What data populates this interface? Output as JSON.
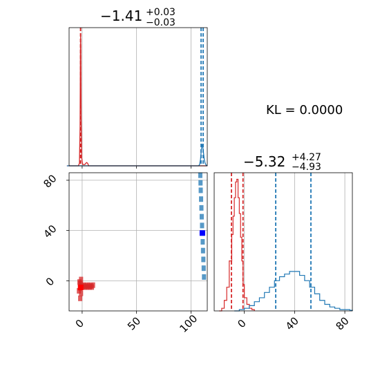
{
  "chart_data": [
    {
      "panel": "top-left marginal",
      "type": "line",
      "title_main": "−1.41",
      "title_sup": "+0.03",
      "title_sub": "−0.03",
      "xlim": [
        -12,
        115
      ],
      "grid": true,
      "series": [
        {
          "color": "#d62728",
          "x": [
            -14,
            -3.5,
            -2.5,
            -1.9,
            -1.6,
            -1.4,
            -1.2,
            -0.9,
            -0.4,
            0.5,
            2.5,
            4,
            5,
            6,
            115
          ],
          "y": [
            0,
            0,
            0.02,
            0.3,
            0.85,
            1.0,
            0.9,
            0.35,
            0.06,
            0.01,
            0.01,
            0.025,
            0.02,
            0,
            0
          ],
          "quantile_lines": [
            -1.44,
            -1.38
          ]
        },
        {
          "color": "#1f77b4",
          "x": [
            -14,
            107,
            108,
            108.8,
            109.5,
            110.2,
            110.8,
            111.5,
            112.2,
            113,
            114,
            115
          ],
          "y": [
            0,
            0,
            0.01,
            0.05,
            0.12,
            0.16,
            0.15,
            0.1,
            0.05,
            0.02,
            0.005,
            0
          ],
          "quantile_lines": [
            109.3,
            111.2
          ]
        }
      ]
    },
    {
      "panel": "bottom-left joint",
      "type": "scatter",
      "xlim": [
        -12,
        115
      ],
      "ylim": [
        -24,
        86
      ],
      "grid": true,
      "x_ticks": [
        0,
        50,
        100
      ],
      "x_tick_labels": [
        "0",
        "50",
        "100"
      ],
      "y_ticks": [
        0,
        40,
        80
      ],
      "y_tick_labels": [
        "0",
        "40",
        "80"
      ],
      "series": [
        {
          "color": "#d62728",
          "center": [
            -1.4,
            -5.3
          ],
          "points": [
            [
              -2,
              -2
            ],
            [
              -1.5,
              -6
            ],
            [
              -1,
              -10
            ],
            [
              -1.8,
              -14
            ],
            [
              -1.2,
              -3
            ],
            [
              0,
              -4
            ],
            [
              2,
              -3.5
            ],
            [
              4,
              -4
            ],
            [
              6,
              -3.5
            ],
            [
              8,
              -4
            ],
            [
              10,
              -3.5
            ],
            [
              -3,
              -8
            ],
            [
              -2.5,
              -1
            ],
            [
              -1,
              1
            ],
            [
              1,
              -5
            ],
            [
              3,
              -5
            ],
            [
              5,
              -5
            ],
            [
              7,
              -5
            ],
            [
              9,
              -5
            ]
          ]
        },
        {
          "color": "#1f77b4",
          "center": [
            110.5,
            38
          ],
          "points": [
            [
              109,
              72
            ],
            [
              109.3,
              65
            ],
            [
              109.6,
              58
            ],
            [
              109.9,
              51
            ],
            [
              110.2,
              44
            ],
            [
              110.5,
              38
            ],
            [
              110.8,
              31
            ],
            [
              111.1,
              24
            ],
            [
              111.4,
              17
            ],
            [
              111.7,
              10
            ],
            [
              112,
              3
            ],
            [
              108.8,
              78
            ],
            [
              108.6,
              84
            ]
          ]
        }
      ]
    },
    {
      "panel": "bottom-right marginal",
      "type": "line",
      "title_main": "−5.32",
      "title_sup": "+4.27",
      "title_sub": "−4.93",
      "xlim": [
        -24,
        86
      ],
      "grid": true,
      "x_ticks": [
        0,
        40,
        80
      ],
      "x_tick_labels": [
        "0",
        "40",
        "80"
      ],
      "series": [
        {
          "color": "#d62728",
          "x": [
            -20,
            -18,
            -16,
            -14,
            -12,
            -10,
            -9,
            -8,
            -7,
            -6,
            -5,
            -4,
            -3,
            -2,
            -1,
            0,
            2,
            4,
            6,
            8
          ],
          "y": [
            0,
            0.02,
            0.08,
            0.18,
            0.38,
            0.58,
            0.72,
            0.86,
            0.98,
            1.0,
            0.86,
            0.74,
            0.56,
            0.38,
            0.2,
            0.1,
            0.05,
            0.02,
            0.01,
            0
          ],
          "quantile_lines": [
            -10.25,
            -1.05
          ]
        },
        {
          "color": "#1f77b4",
          "x": [
            -8,
            -4,
            0,
            4,
            8,
            12,
            16,
            20,
            24,
            28,
            32,
            36,
            40,
            44,
            48,
            52,
            56,
            60,
            64,
            68,
            72,
            76,
            80,
            84,
            86
          ],
          "y": [
            0,
            0.01,
            0.02,
            0.04,
            0.07,
            0.1,
            0.14,
            0.18,
            0.23,
            0.26,
            0.28,
            0.3,
            0.3,
            0.27,
            0.23,
            0.18,
            0.13,
            0.08,
            0.05,
            0.03,
            0.02,
            0.01,
            0.01,
            0.005,
            0
          ],
          "quantile_lines": [
            25,
            53
          ]
        }
      ]
    }
  ],
  "annotations": {
    "kl": "KL = 0.0000"
  }
}
